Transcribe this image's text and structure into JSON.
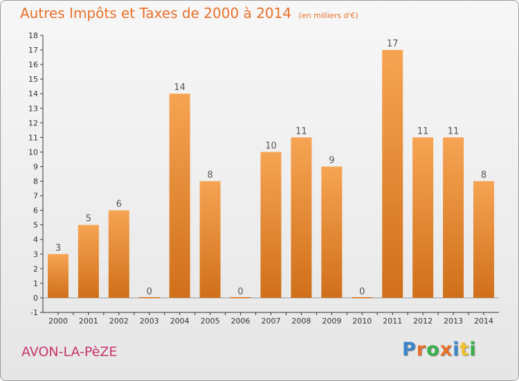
{
  "header": {
    "title": "Autres Impôts et Taxes de 2000 à 2014",
    "subtitle": "(en milliers d'€)"
  },
  "footer": {
    "location": "AVON-LA-PèZE",
    "logo_text": "Proxiti"
  },
  "colors": {
    "bar_top": "#f6a453",
    "bar_bottom": "#d06f1a",
    "title": "#e8702a",
    "location": "#c8336e"
  },
  "chart_data": {
    "type": "bar",
    "title": "Autres Impôts et Taxes de 2000 à 2014",
    "subtitle": "(en milliers d'€)",
    "categories": [
      "2000",
      "2001",
      "2002",
      "2003",
      "2004",
      "2005",
      "2006",
      "2007",
      "2008",
      "2009",
      "2010",
      "2011",
      "2012",
      "2013",
      "2014"
    ],
    "values": [
      3,
      5,
      6,
      0,
      14,
      8,
      0,
      10,
      11,
      9,
      0,
      17,
      11,
      11,
      8
    ],
    "ylim": [
      -1,
      18
    ],
    "yticks": [
      -1,
      0,
      1,
      2,
      3,
      4,
      5,
      6,
      7,
      8,
      9,
      10,
      11,
      12,
      13,
      14,
      15,
      16,
      17,
      18
    ],
    "grid": false,
    "data_labels": true
  }
}
